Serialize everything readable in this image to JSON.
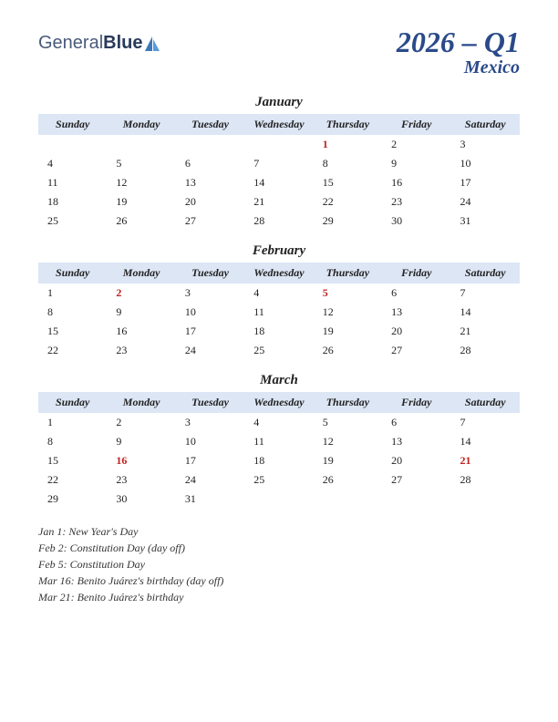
{
  "logo": {
    "text1": "General",
    "text2": "Blue"
  },
  "title": {
    "main": "2026 – Q1",
    "sub": "Mexico"
  },
  "colors": {
    "header_bg": "#dce6f5",
    "title_color": "#2a4a8a",
    "holiday_color": "#c02020",
    "text_color": "#222222"
  },
  "day_headers": [
    "Sunday",
    "Monday",
    "Tuesday",
    "Wednesday",
    "Thursday",
    "Friday",
    "Saturday"
  ],
  "months": [
    {
      "name": "January",
      "weeks": [
        [
          "",
          "",
          "",
          "",
          {
            "d": "1",
            "h": true
          },
          "2",
          "3"
        ],
        [
          "4",
          "5",
          "6",
          "7",
          "8",
          "9",
          "10"
        ],
        [
          "11",
          "12",
          "13",
          "14",
          "15",
          "16",
          "17"
        ],
        [
          "18",
          "19",
          "20",
          "21",
          "22",
          "23",
          "24"
        ],
        [
          "25",
          "26",
          "27",
          "28",
          "29",
          "30",
          "31"
        ]
      ]
    },
    {
      "name": "February",
      "weeks": [
        [
          "1",
          {
            "d": "2",
            "h": true
          },
          "3",
          "4",
          {
            "d": "5",
            "h": true
          },
          "6",
          "7"
        ],
        [
          "8",
          "9",
          "10",
          "11",
          "12",
          "13",
          "14"
        ],
        [
          "15",
          "16",
          "17",
          "18",
          "19",
          "20",
          "21"
        ],
        [
          "22",
          "23",
          "24",
          "25",
          "26",
          "27",
          "28"
        ]
      ]
    },
    {
      "name": "March",
      "weeks": [
        [
          "1",
          "2",
          "3",
          "4",
          "5",
          "6",
          "7"
        ],
        [
          "8",
          "9",
          "10",
          "11",
          "12",
          "13",
          "14"
        ],
        [
          "15",
          {
            "d": "16",
            "h": true
          },
          "17",
          "18",
          "19",
          "20",
          {
            "d": "21",
            "h": true
          }
        ],
        [
          "22",
          "23",
          "24",
          "25",
          "26",
          "27",
          "28"
        ],
        [
          "29",
          "30",
          "31",
          "",
          "",
          "",
          ""
        ]
      ]
    }
  ],
  "holidays": [
    "Jan 1: New Year's Day",
    "Feb 2: Constitution Day (day off)",
    "Feb 5: Constitution Day",
    "Mar 16: Benito Juárez's birthday (day off)",
    "Mar 21: Benito Juárez's birthday"
  ]
}
